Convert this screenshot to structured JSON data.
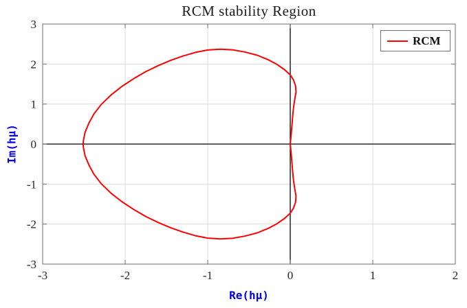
{
  "chart_data": {
    "type": "line",
    "title": "RCM stability Region",
    "xlabel": "Re(hμ)",
    "ylabel": "Im(hμ)",
    "xlim": [
      -3,
      2
    ],
    "ylim": [
      -3,
      3
    ],
    "xticks": [
      -3,
      -2,
      -1,
      0,
      1,
      2
    ],
    "yticks": [
      -3,
      -2,
      -1,
      0,
      1,
      2,
      3
    ],
    "grid": true,
    "legend": {
      "label": "RCM",
      "position": "top-right"
    },
    "colors": {
      "series": "#ff0000",
      "grid": "#dcdcdc",
      "box": "#6e6e6e",
      "zero_axes": "#000000",
      "tick_label": "#262626",
      "axis_label": "#0000ee",
      "title": "#1a1a1a"
    },
    "series": [
      {
        "name": "RCM",
        "color": "#ff0000",
        "points": [
          [
            0,
            0
          ],
          [
            0.01,
            0.2
          ],
          [
            0.02,
            0.45
          ],
          [
            0.03,
            0.7
          ],
          [
            0.04,
            0.92
          ],
          [
            0.055,
            1.12
          ],
          [
            0.07,
            1.3
          ],
          [
            0.065,
            1.45
          ],
          [
            0.04,
            1.6
          ],
          [
            0,
            1.73
          ],
          [
            -0.07,
            1.86
          ],
          [
            -0.16,
            1.99
          ],
          [
            -0.27,
            2.11
          ],
          [
            -0.4,
            2.22
          ],
          [
            -0.55,
            2.3
          ],
          [
            -0.7,
            2.355
          ],
          [
            -0.85,
            2.37
          ],
          [
            -1,
            2.35
          ],
          [
            -1.15,
            2.29
          ],
          [
            -1.3,
            2.2
          ],
          [
            -1.45,
            2.09
          ],
          [
            -1.6,
            1.96
          ],
          [
            -1.75,
            1.81
          ],
          [
            -1.9,
            1.63
          ],
          [
            -2.04,
            1.44
          ],
          [
            -2.17,
            1.23
          ],
          [
            -2.29,
            0.99
          ],
          [
            -2.38,
            0.75
          ],
          [
            -2.44,
            0.52
          ],
          [
            -2.485,
            0.3
          ],
          [
            -2.505,
            0.1
          ],
          [
            -2.51,
            0
          ],
          [
            -2.505,
            -0.1
          ],
          [
            -2.485,
            -0.3
          ],
          [
            -2.44,
            -0.52
          ],
          [
            -2.38,
            -0.75
          ],
          [
            -2.29,
            -0.99
          ],
          [
            -2.17,
            -1.23
          ],
          [
            -2.04,
            -1.44
          ],
          [
            -1.9,
            -1.63
          ],
          [
            -1.75,
            -1.81
          ],
          [
            -1.6,
            -1.96
          ],
          [
            -1.45,
            -2.09
          ],
          [
            -1.3,
            -2.2
          ],
          [
            -1.15,
            -2.29
          ],
          [
            -1,
            -2.35
          ],
          [
            -0.85,
            -2.37
          ],
          [
            -0.7,
            -2.355
          ],
          [
            -0.55,
            -2.3
          ],
          [
            -0.4,
            -2.22
          ],
          [
            -0.27,
            -2.11
          ],
          [
            -0.16,
            -1.99
          ],
          [
            -0.07,
            -1.86
          ],
          [
            0,
            -1.73
          ],
          [
            0.04,
            -1.6
          ],
          [
            0.065,
            -1.45
          ],
          [
            0.07,
            -1.3
          ],
          [
            0.055,
            -1.12
          ],
          [
            0.04,
            -0.92
          ],
          [
            0.03,
            -0.7
          ],
          [
            0.02,
            -0.45
          ],
          [
            0.01,
            -0.2
          ],
          [
            0,
            0
          ]
        ]
      }
    ]
  }
}
